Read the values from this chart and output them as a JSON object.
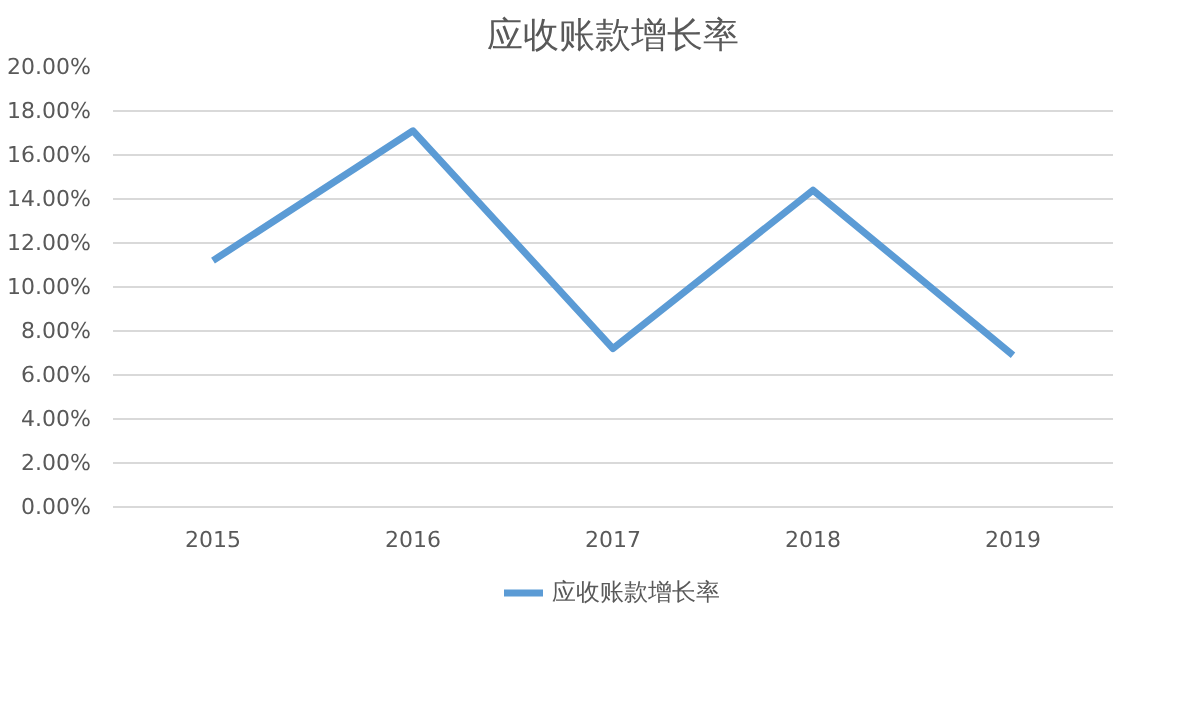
{
  "chart_data": {
    "type": "line",
    "title": "应收账款增长率",
    "categories": [
      "2015",
      "2016",
      "2017",
      "2018",
      "2019"
    ],
    "series": [
      {
        "name": "应收账款增长率",
        "color": "#5b9bd5",
        "values": [
          11.2,
          17.1,
          7.2,
          14.4,
          6.9
        ]
      }
    ],
    "ylim": [
      0,
      20
    ],
    "yticks": [
      {
        "value": 0,
        "label": "0.00%"
      },
      {
        "value": 2,
        "label": "2.00%"
      },
      {
        "value": 4,
        "label": "4.00%"
      },
      {
        "value": 6,
        "label": "6.00%"
      },
      {
        "value": 8,
        "label": "8.00%"
      },
      {
        "value": 10,
        "label": "10.00%"
      },
      {
        "value": 12,
        "label": "12.00%"
      },
      {
        "value": 14,
        "label": "14.00%"
      },
      {
        "value": 16,
        "label": "16.00%"
      },
      {
        "value": 18,
        "label": "18.00%"
      },
      {
        "value": 20,
        "label": "20.00%"
      }
    ],
    "grid": "y",
    "legend": "bottom",
    "marker": "none",
    "line_style": "solid"
  }
}
